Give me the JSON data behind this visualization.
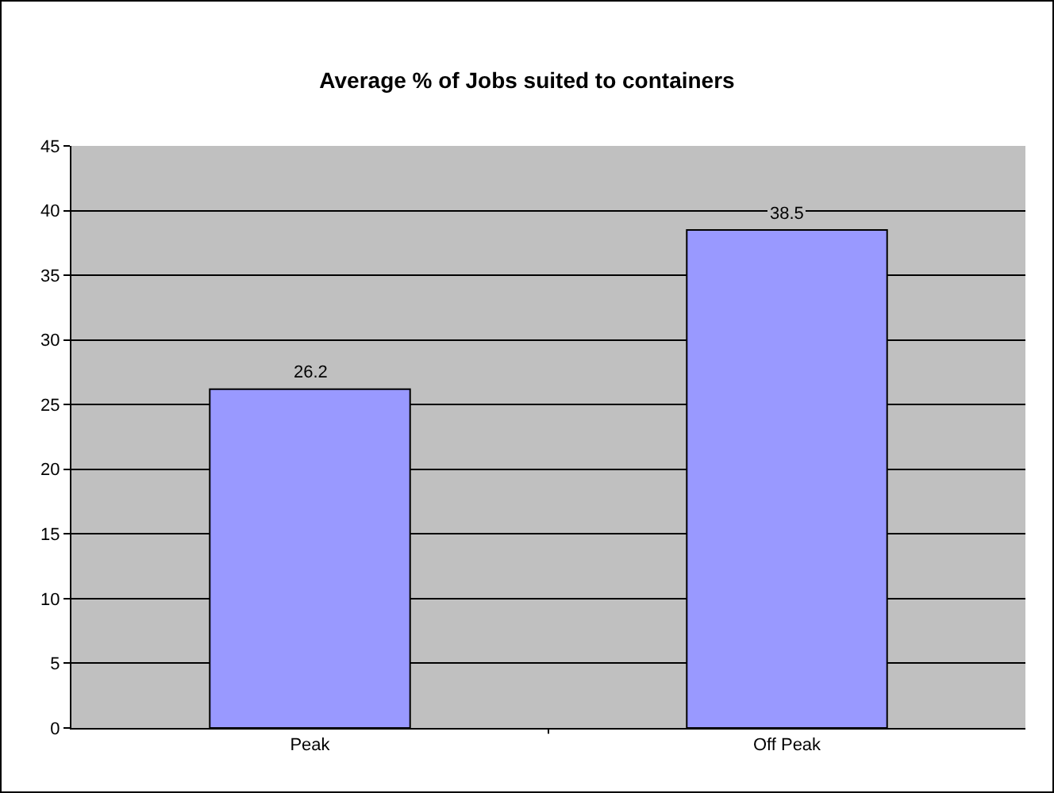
{
  "chart_data": {
    "type": "bar",
    "title": "Average % of Jobs suited to containers",
    "categories": [
      "Peak",
      "Off Peak"
    ],
    "values": [
      26.2,
      38.5
    ],
    "color": "#9999ff",
    "ylim": [
      0,
      45
    ],
    "yticks": [
      0,
      5,
      10,
      15,
      20,
      25,
      30,
      35,
      40,
      45
    ],
    "grid": "y",
    "data_labels": true,
    "legend": false
  }
}
